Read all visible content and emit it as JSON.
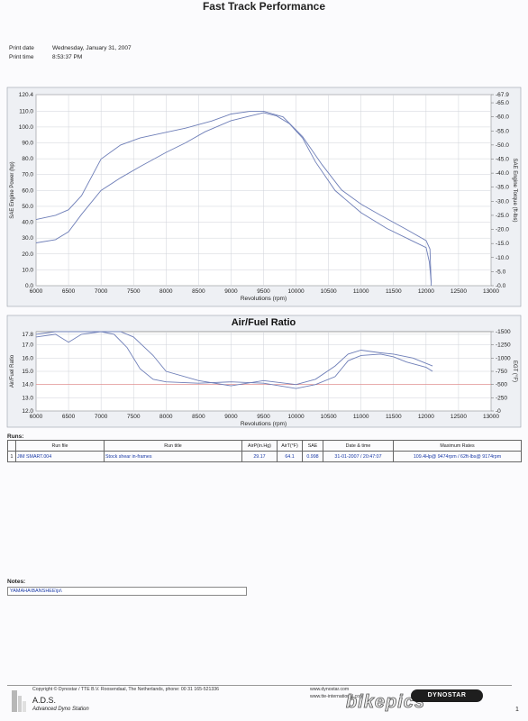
{
  "header": {
    "title": "Fast Track Performance",
    "print_date_label": "Print date",
    "print_date": "Wednesday, January 31, 2007",
    "print_time_label": "Print time",
    "print_time": "8:53:37 PM"
  },
  "colors": {
    "curve": "#6f7fb8",
    "ref_line": "#e08080",
    "grid": "#cfd2d8",
    "watermark_outline": "#555555"
  },
  "chart_data": [
    {
      "type": "line",
      "title": "",
      "xlabel": "Revolutions (rpm)",
      "ylabel": "SAE Engine Power (hp)",
      "y2label": "SAE Engine Torque (ft-lbs)",
      "xlim": [
        6000,
        13000
      ],
      "ylim": [
        0,
        120.4
      ],
      "y2lim": [
        0,
        67.9
      ],
      "x_ticks": [
        "6000",
        "6500",
        "7000",
        "7500",
        "8000",
        "8500",
        "9000",
        "9500",
        "10000",
        "10500",
        "11000",
        "11500",
        "12000",
        "12500",
        "13000"
      ],
      "y_ticks": [
        "0.0",
        "10.0",
        "20.0",
        "30.0",
        "40.0",
        "50.0",
        "60.0",
        "70.0",
        "80.0",
        "90.0",
        "100.0",
        "110.0",
        "120.4"
      ],
      "y2_ticks": [
        "0.0",
        "5.0",
        "10.0",
        "15.0",
        "20.0",
        "25.0",
        "30.0",
        "35.0",
        "40.0",
        "45.0",
        "50.0",
        "55.0",
        "60.0",
        "65.0",
        "67.9"
      ],
      "grid": true,
      "series": [
        {
          "axis": "left",
          "x": [
            6000,
            6300,
            6500,
            6700,
            7000,
            7300,
            7600,
            8000,
            8300,
            8600,
            9000,
            9300,
            9500,
            9700,
            9900,
            10100,
            10300,
            10600,
            11000,
            11400,
            11800,
            12000,
            12050,
            12080
          ],
          "y": [
            27,
            29,
            34,
            45,
            60,
            68,
            75,
            84,
            90,
            97,
            104,
            107,
            109,
            107,
            102,
            93,
            78,
            60,
            46,
            36,
            28,
            24,
            15,
            2
          ]
        },
        {
          "axis": "right",
          "x": [
            6000,
            6300,
            6500,
            6700,
            7000,
            7300,
            7600,
            8000,
            8300,
            8700,
            9000,
            9300,
            9500,
            9800,
            10100,
            10400,
            10700,
            11000,
            11300,
            11700,
            12000,
            12060,
            12080
          ],
          "y": [
            23.5,
            25,
            27,
            32,
            45,
            50,
            52.5,
            54.5,
            56,
            58.5,
            61,
            62,
            62,
            60,
            53,
            43,
            34,
            29,
            25,
            20,
            16,
            13,
            0
          ]
        }
      ]
    },
    {
      "type": "line",
      "title": "Air/Fuel Ratio",
      "xlabel": "Revolutions (rpm)",
      "ylabel": "Air/Fuel Ratio",
      "y2label": "EGT (°F)",
      "xlim": [
        6000,
        13000
      ],
      "ylim": [
        12,
        18
      ],
      "y2lim": [
        0,
        1500
      ],
      "x_ticks": [
        "6000",
        "6500",
        "7000",
        "7500",
        "8000",
        "8500",
        "9000",
        "9500",
        "10000",
        "10500",
        "11000",
        "11500",
        "12000",
        "12500",
        "13000"
      ],
      "y_ticks": [
        "12.0",
        "13.0",
        "14.0",
        "15.0",
        "16.0",
        "17.0",
        "17.8"
      ],
      "y2_ticks": [
        "0",
        "250",
        "500",
        "750",
        "1000",
        "1250",
        "1500"
      ],
      "reference_line_afr": 14.0,
      "grid": true,
      "series": [
        {
          "x": [
            6000,
            6300,
            6500,
            6700,
            7000,
            7200,
            7400,
            7600,
            7800,
            8000,
            8500,
            9000,
            9500,
            10000,
            10300,
            10600,
            10800,
            11000,
            11300,
            11500,
            11700,
            12000,
            12100
          ],
          "y": [
            17.6,
            17.8,
            17.2,
            17.8,
            18,
            17.8,
            16.8,
            15.2,
            14.4,
            14.2,
            14.1,
            14.2,
            14.1,
            13.7,
            14,
            14.6,
            15.8,
            16.2,
            16.3,
            16.1,
            15.7,
            15.3,
            15
          ]
        },
        {
          "x": [
            6000,
            6300,
            6600,
            7000,
            7300,
            7500,
            7800,
            8000,
            8500,
            9000,
            9500,
            10000,
            10300,
            10600,
            10800,
            11000,
            11300,
            11500,
            11800,
            12000,
            12100
          ],
          "y": [
            17.8,
            18,
            18,
            18,
            18,
            17.6,
            16.2,
            15,
            14.3,
            13.9,
            14.3,
            14,
            14.4,
            15.4,
            16.3,
            16.6,
            16.4,
            16.3,
            16,
            15.6,
            15.4
          ]
        }
      ]
    }
  ],
  "runs": {
    "section_label": "Runs:",
    "headers": [
      "Run file",
      "Run title",
      "AirP(in.Hg)",
      "AirT(°F)",
      "SAE",
      "Date & time",
      "Maximum Rates"
    ],
    "rows": [
      {
        "index": "1",
        "run_file": "JIM SMART.004",
        "run_title": "Stock shear in-frames",
        "airp": "29.17",
        "airt": "64.1",
        "sae": "0.998",
        "datetime": "31-01-2007 / 20:47:07",
        "max_rates": "109.4Hp@ 9474rpm / 62ft-lbs@ 9174rpm"
      }
    ]
  },
  "notes": {
    "label": "Notes:",
    "text": "YAMAHA\\BANSHEE\\js\\"
  },
  "footer": {
    "copyright": "Copyright © Dynostar / TTE B.V. Roosendaal, The Netherlands, phone: 00 31 165-521336",
    "website1": "www.dynostar.com",
    "website2": "www.tte-international.com",
    "brand": "A.D.S.",
    "brand_sub": "Advanced Dyno Station",
    "dynostar_badge": "DYNOSTAR",
    "watermark": "bikepics",
    "page_number": "1"
  }
}
